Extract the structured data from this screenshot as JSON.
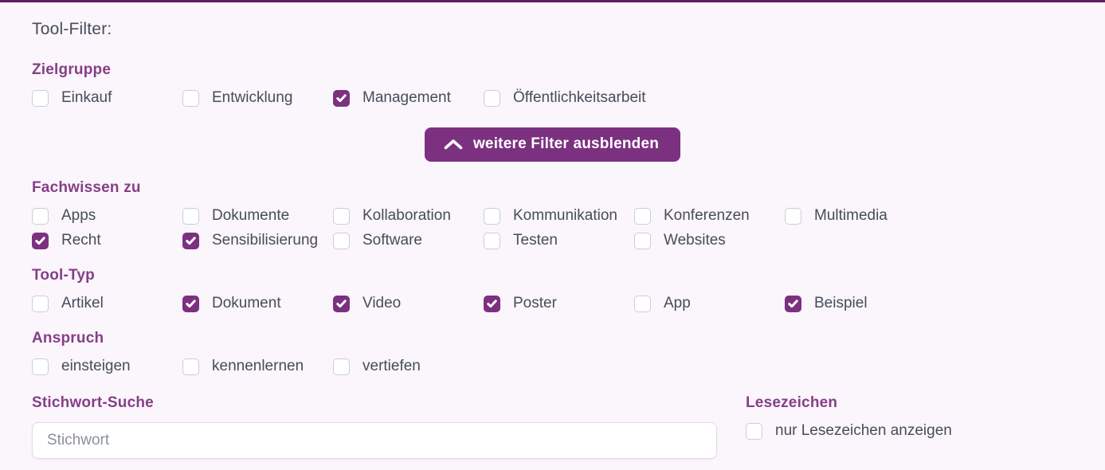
{
  "title": "Tool-Filter:",
  "colors": {
    "accent": "#7c3180",
    "heading": "#853f87",
    "top_border": "#5c1f5c",
    "background": "#fbf5fc",
    "label_text": "#454e58"
  },
  "sections": {
    "zielgruppe": {
      "heading": "Zielgruppe",
      "options": [
        {
          "label": "Einkauf",
          "checked": false
        },
        {
          "label": "Entwicklung",
          "checked": false
        },
        {
          "label": "Management",
          "checked": true
        },
        {
          "label": "Öffentlichkeitsarbeit",
          "checked": false
        }
      ]
    },
    "fachwissen": {
      "heading": "Fachwissen zu",
      "options": [
        {
          "label": "Apps",
          "checked": false
        },
        {
          "label": "Dokumente",
          "checked": false
        },
        {
          "label": "Kollaboration",
          "checked": false
        },
        {
          "label": "Kommunikation",
          "checked": false
        },
        {
          "label": "Konferenzen",
          "checked": false
        },
        {
          "label": "Multimedia",
          "checked": false
        },
        {
          "label": "Recht",
          "checked": true
        },
        {
          "label": "Sensibilisierung",
          "checked": true
        },
        {
          "label": "Software",
          "checked": false
        },
        {
          "label": "Testen",
          "checked": false
        },
        {
          "label": "Websites",
          "checked": false
        }
      ]
    },
    "tooltyp": {
      "heading": "Tool-Typ",
      "options": [
        {
          "label": "Artikel",
          "checked": false
        },
        {
          "label": "Dokument",
          "checked": true
        },
        {
          "label": "Video",
          "checked": true
        },
        {
          "label": "Poster",
          "checked": true
        },
        {
          "label": "App",
          "checked": false
        },
        {
          "label": "Beispiel",
          "checked": true
        }
      ]
    },
    "anspruch": {
      "heading": "Anspruch",
      "options": [
        {
          "label": "einsteigen",
          "checked": false
        },
        {
          "label": "kennenlernen",
          "checked": false
        },
        {
          "label": "vertiefen",
          "checked": false
        }
      ]
    }
  },
  "toggle_button": {
    "label": "weitere Filter ausblenden",
    "icon": "chevron-up-icon"
  },
  "search": {
    "heading": "Stichwort-Suche",
    "placeholder": "Stichwort",
    "value": ""
  },
  "bookmarks": {
    "heading": "Lesezeichen",
    "options": [
      {
        "label": "nur Lesezeichen anzeigen",
        "checked": false
      }
    ]
  }
}
